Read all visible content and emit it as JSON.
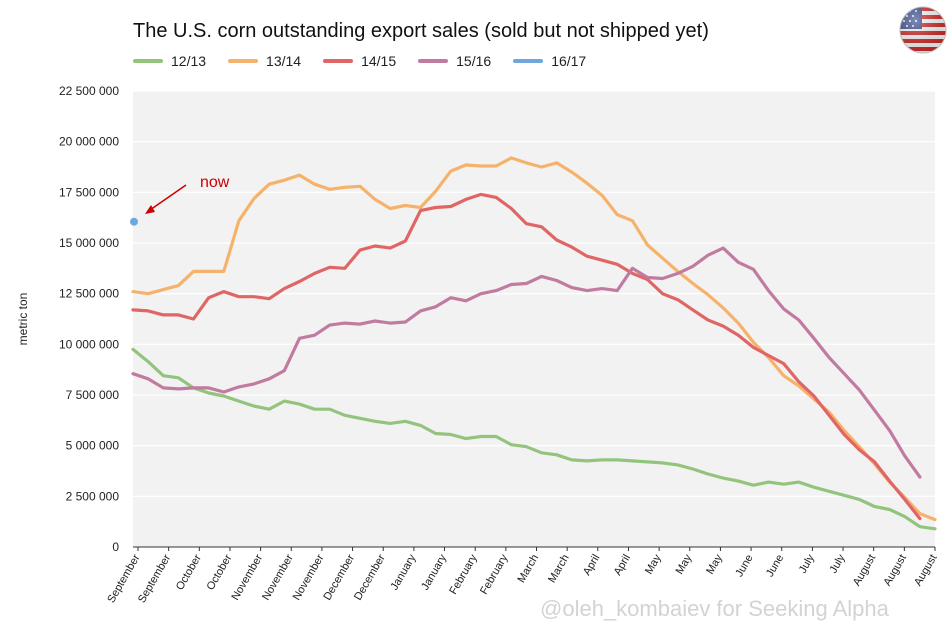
{
  "chart_data": {
    "type": "line",
    "title": "The U.S. corn outstanding export sales (sold but not shipped yet)",
    "ylabel": "metric ton",
    "ylim": [
      0,
      22500000
    ],
    "grid": true,
    "legend_position": "top-left",
    "yticks": [
      "22 500 000",
      "20 000 000",
      "17 500 000",
      "15 000 000",
      "12 500 000",
      "10 000 000",
      "7 500 000",
      "5 000 000",
      "2 500 000",
      "0"
    ],
    "x_labels": [
      "September",
      "September",
      "October",
      "October",
      "November",
      "November",
      "November",
      "December",
      "December",
      "January",
      "January",
      "February",
      "February",
      "March",
      "March",
      "April",
      "April",
      "May",
      "May",
      "May",
      "June",
      "June",
      "July",
      "July",
      "August",
      "August",
      "August"
    ],
    "series": [
      {
        "name": "12/13",
        "color": "#93c47d",
        "values": [
          9750000,
          9150000,
          8450000,
          8350000,
          7850000,
          7600000,
          7450000,
          7200000,
          6950000,
          6800000,
          7200000,
          7050000,
          6800000,
          6800000,
          6500000,
          6350000,
          6200000,
          6100000,
          6200000,
          6000000,
          5600000,
          5550000,
          5350000,
          5450000,
          5450000,
          5050000,
          4950000,
          4650000,
          4550000,
          4300000,
          4250000,
          4300000,
          4300000,
          4250000,
          4200000,
          4150000,
          4050000,
          3850000,
          3600000,
          3400000,
          3250000,
          3050000,
          3200000,
          3100000,
          3200000,
          2950000,
          2750000,
          2550000,
          2350000,
          2000000,
          1850000,
          1500000,
          1000000,
          900000
        ]
      },
      {
        "name": "13/14",
        "color": "#f6b26b",
        "values": [
          12600000,
          12500000,
          12700000,
          12900000,
          13600000,
          13600000,
          13600000,
          16100000,
          17200000,
          17900000,
          18100000,
          18350000,
          17900000,
          17650000,
          17750000,
          17800000,
          17150000,
          16700000,
          16850000,
          16750000,
          17550000,
          18550000,
          18850000,
          18800000,
          18800000,
          19200000,
          18950000,
          18750000,
          18950000,
          18500000,
          17950000,
          17350000,
          16400000,
          16100000,
          14900000,
          14250000,
          13600000,
          13000000,
          12450000,
          11800000,
          11050000,
          10100000,
          9350000,
          8450000,
          7950000,
          7300000,
          6650000,
          5750000,
          4950000,
          4100000,
          3200000,
          2450000,
          1650000,
          1350000
        ]
      },
      {
        "name": "14/15",
        "color": "#e06666",
        "values": [
          11700000,
          11650000,
          11450000,
          11450000,
          11250000,
          12300000,
          12600000,
          12350000,
          12350000,
          12250000,
          12750000,
          13100000,
          13500000,
          13800000,
          13750000,
          14650000,
          14850000,
          14750000,
          15100000,
          16600000,
          16750000,
          16800000,
          17150000,
          17400000,
          17250000,
          16700000,
          15950000,
          15800000,
          15150000,
          14800000,
          14350000,
          14150000,
          13950000,
          13500000,
          13200000,
          12500000,
          12200000,
          11700000,
          11200000,
          10900000,
          10450000,
          9850000,
          9450000,
          9050000,
          8150000,
          7450000,
          6500000,
          5550000,
          4800000,
          4200000,
          3250000,
          2350000,
          1400000
        ]
      },
      {
        "name": "15/16",
        "color": "#c27ba0",
        "values": [
          8550000,
          8300000,
          7850000,
          7800000,
          7850000,
          7850000,
          7650000,
          7900000,
          8050000,
          8300000,
          8700000,
          10300000,
          10450000,
          10950000,
          11050000,
          11000000,
          11150000,
          11050000,
          11100000,
          11650000,
          11850000,
          12300000,
          12150000,
          12500000,
          12650000,
          12950000,
          13000000,
          13350000,
          13150000,
          12800000,
          12650000,
          12750000,
          12650000,
          13750000,
          13300000,
          13250000,
          13500000,
          13850000,
          14400000,
          14750000,
          14050000,
          13700000,
          12650000,
          11750000,
          11200000,
          10300000,
          9350000,
          8550000,
          7750000,
          6750000,
          5750000,
          4500000,
          3450000
        ]
      },
      {
        "name": "16/17",
        "color": "#6fa8dc",
        "values": [
          16050000
        ]
      }
    ],
    "annotations": [
      {
        "text": "now"
      }
    ]
  },
  "watermark": "@oleh_kombaiev for Seeking Alpha",
  "flag_icon": "us-flag-icon"
}
